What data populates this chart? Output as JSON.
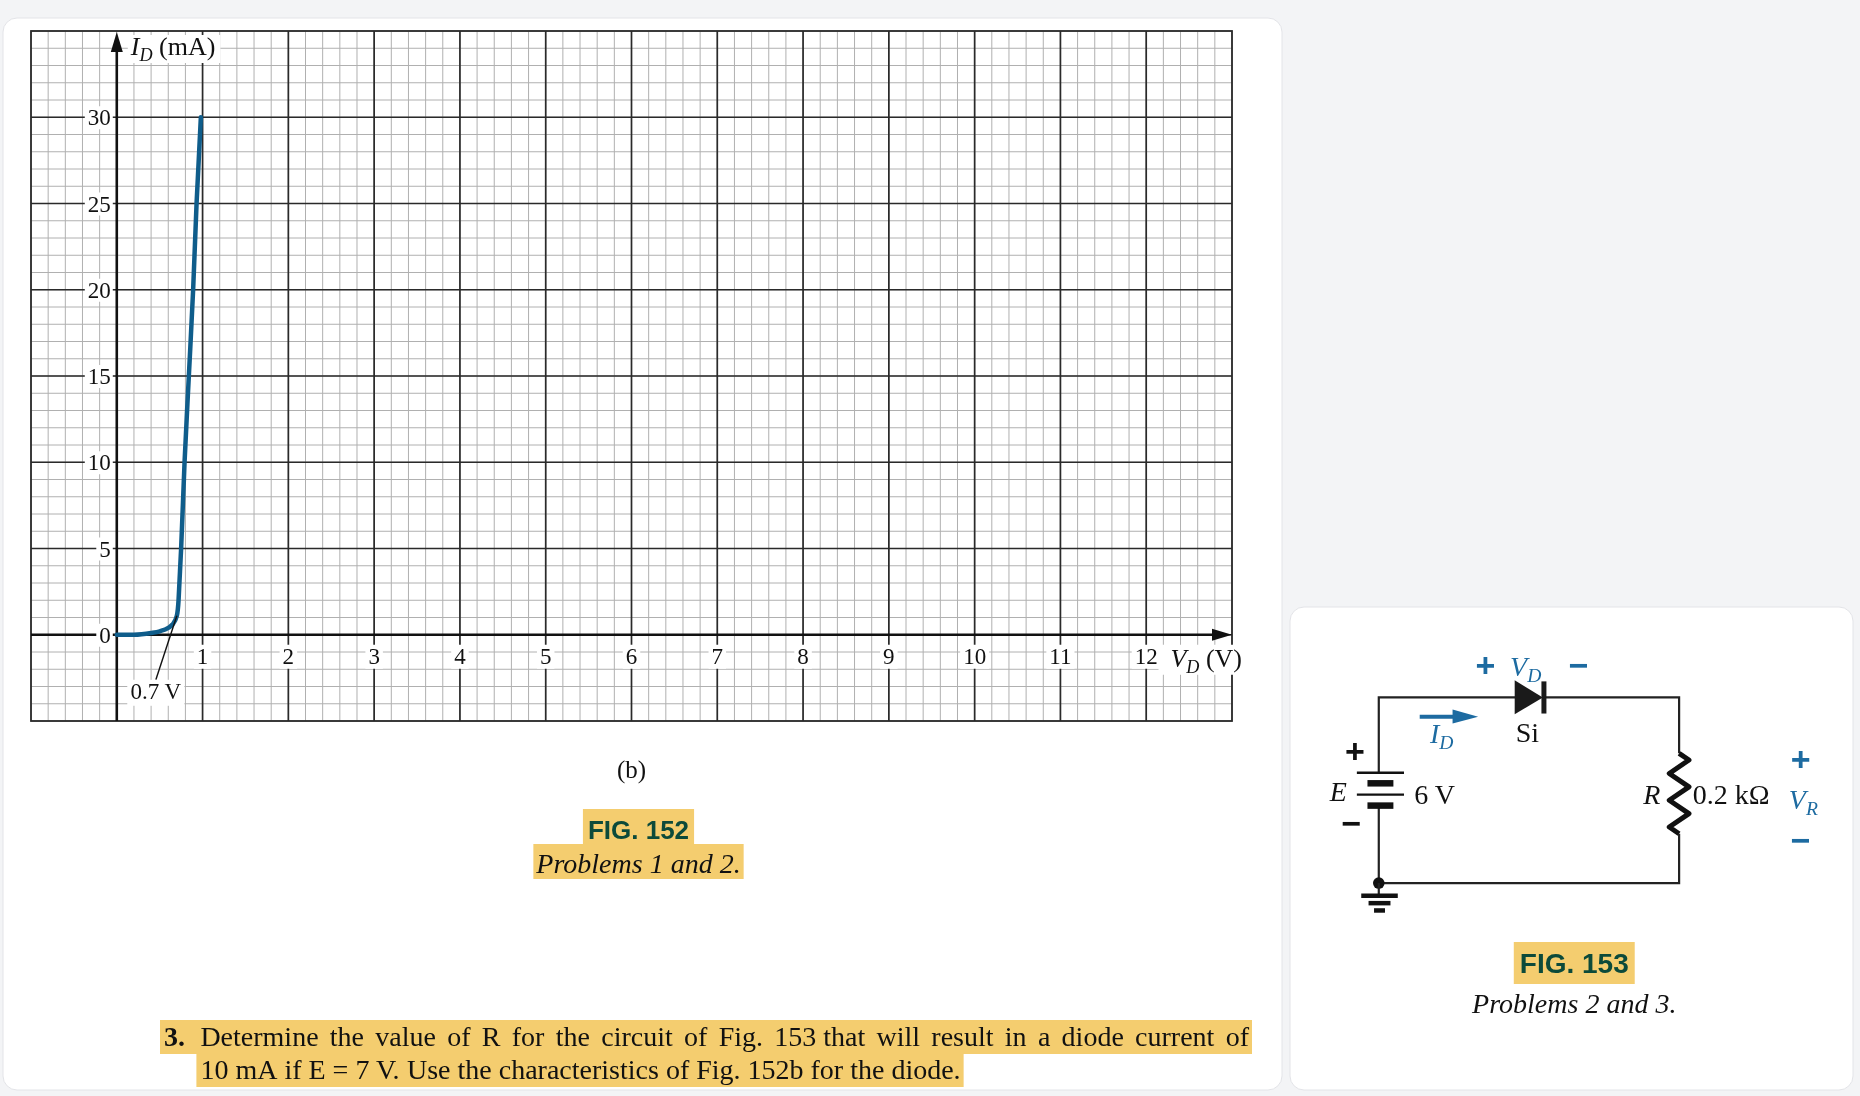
{
  "chart_data": [
    {
      "type": "line",
      "title": "FIG. 152",
      "subtitle": "Problems 1 and 2.",
      "xlabel": "V$_{D}$ (V)",
      "ylabel": "I$_{D}$ (mA)",
      "x": [
        0,
        0.2,
        0.4,
        0.5,
        0.6,
        0.65,
        0.7,
        0.72,
        0.73,
        0.75,
        0.79,
        0.84,
        0.89,
        0.93,
        0.98
      ],
      "series": [
        {
          "color": "#0f5d8b",
          "values": [
            0,
            0,
            0.1,
            0.2,
            0.4,
            0.6,
            1.1,
            2,
            3,
            5,
            10,
            15,
            20,
            25,
            30
          ]
        }
      ],
      "xlim": [
        -1,
        13
      ],
      "ylim": [
        -5,
        35
      ],
      "xticks": [
        1,
        2,
        3,
        4,
        5,
        6,
        7,
        8,
        9,
        10,
        11,
        12
      ],
      "yticks": [
        0,
        5,
        10,
        15,
        20,
        25,
        30
      ],
      "grid": true,
      "annotations": [
        "(b)",
        {
          "text": "0.7 V",
          "x": 0.7,
          "y": 1.1
        },
        "3. Determine the value of R for the circuit of Fig. 153 that will result in a diode current of 10 mA if E = 7 V. Use the characteristics of Fig. 152b for the diode."
      ]
    },
    {
      "type": "other",
      "title": "FIG. 153",
      "subtitle": "Problems 2 and 3.",
      "annotations": [
        "+",
        "V$_{D}$",
        "−",
        "I$_{D}$",
        "Si",
        "+",
        "E",
        "−",
        "6 V",
        "R",
        "0.2 kΩ",
        "+",
        "V$_{R}$",
        "−"
      ]
    }
  ]
}
